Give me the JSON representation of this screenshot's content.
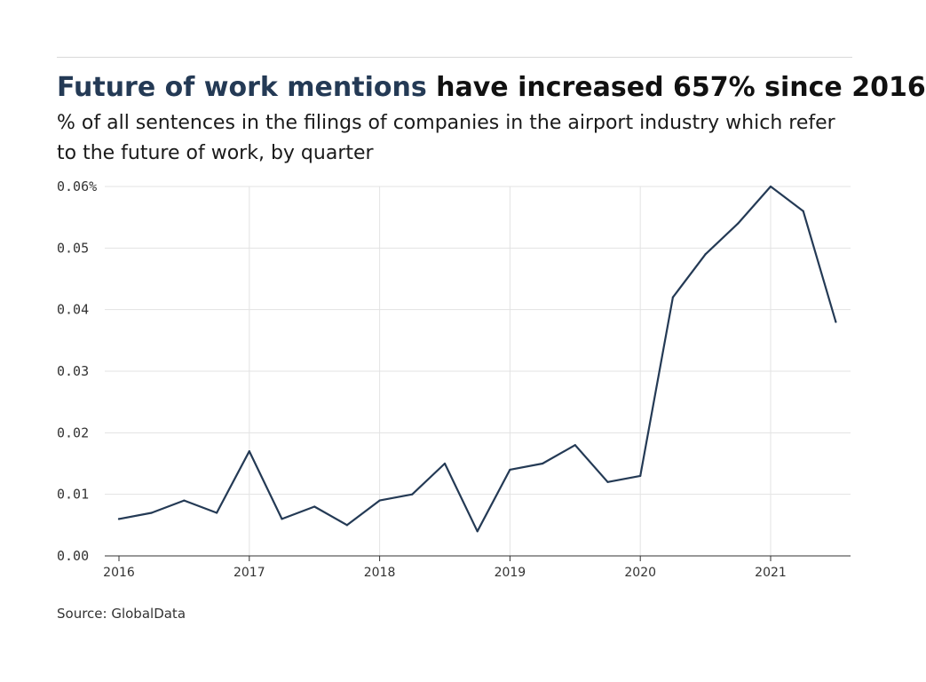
{
  "title": {
    "highlight": "Future of work mentions",
    "rest": "have increased 657% since 2016"
  },
  "subtitle": "% of all sentences in the filings of companies in the airport industry which refer to the future of work, by quarter",
  "source": "Source: GlobalData",
  "colors": {
    "line": "#243a55",
    "grid": "#e3e3e3",
    "axis": "#333333"
  },
  "chart_data": {
    "type": "line",
    "title": "Future of work mentions have increased 657% since 2016",
    "subtitle": "% of all sentences in the filings of companies in the airport industry which refer to the future of work, by quarter",
    "xlabel": "",
    "ylabel": "",
    "ylim": [
      0,
      0.06
    ],
    "xlim": [
      "2016 Q1",
      "2021 Q3"
    ],
    "grid": true,
    "y_ticks": [
      {
        "value": 0,
        "label": "0.00"
      },
      {
        "value": 0.01,
        "label": "0.01"
      },
      {
        "value": 0.02,
        "label": "0.02"
      },
      {
        "value": 0.03,
        "label": "0.03"
      },
      {
        "value": 0.04,
        "label": "0.04"
      },
      {
        "value": 0.05,
        "label": "0.05"
      },
      {
        "value": 0.06,
        "label": "0.06%"
      }
    ],
    "x_ticks": [
      "2016",
      "2017",
      "2018",
      "2019",
      "2020",
      "2021"
    ],
    "x": [
      "2016 Q1",
      "2016 Q2",
      "2016 Q3",
      "2016 Q4",
      "2017 Q1",
      "2017 Q2",
      "2017 Q3",
      "2017 Q4",
      "2018 Q1",
      "2018 Q2",
      "2018 Q3",
      "2018 Q4",
      "2019 Q1",
      "2019 Q2",
      "2019 Q3",
      "2019 Q4",
      "2020 Q1",
      "2020 Q2",
      "2020 Q3",
      "2020 Q4",
      "2021 Q1",
      "2021 Q2",
      "2021 Q3"
    ],
    "series": [
      {
        "values": [
          0.006,
          0.007,
          0.009,
          0.007,
          0.017,
          0.006,
          0.008,
          0.005,
          0.009,
          0.01,
          0.015,
          0.004,
          0.014,
          0.015,
          0.018,
          0.012,
          0.013,
          0.042,
          0.049,
          0.054,
          0.06,
          0.056,
          0.038
        ]
      }
    ]
  }
}
